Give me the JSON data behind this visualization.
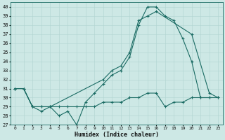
{
  "xlabel": "Humidex (Indice chaleur)",
  "bg_color": "#cde8e5",
  "grid_color": "#b0d4d0",
  "line_color": "#1a6b63",
  "xlim": [
    -0.5,
    23.5
  ],
  "ylim": [
    27,
    40.5
  ],
  "xticks": [
    0,
    1,
    2,
    3,
    4,
    5,
    6,
    7,
    8,
    9,
    10,
    11,
    12,
    13,
    14,
    15,
    16,
    17,
    18,
    19,
    20,
    21,
    22,
    23
  ],
  "yticks": [
    27,
    28,
    29,
    30,
    31,
    32,
    33,
    34,
    35,
    36,
    37,
    38,
    39,
    40
  ],
  "line1_x": [
    0,
    1,
    2,
    3,
    4,
    5,
    6,
    7,
    8,
    9,
    10,
    11,
    12,
    13,
    14,
    15,
    16,
    17,
    18,
    19,
    20,
    21,
    22
  ],
  "line1_y": [
    31.0,
    31.0,
    29.0,
    28.5,
    29.0,
    28.0,
    28.5,
    27.0,
    29.5,
    30.5,
    31.5,
    32.5,
    33.0,
    34.5,
    38.0,
    40.0,
    40.0,
    39.0,
    38.5,
    36.5,
    34.0,
    30.0,
    30.0
  ],
  "line2_x": [
    0,
    1,
    2,
    3,
    4,
    10,
    11,
    12,
    13,
    14,
    15,
    16,
    20,
    22,
    23
  ],
  "line2_y": [
    31.0,
    31.0,
    29.0,
    29.0,
    29.0,
    32.0,
    33.0,
    33.5,
    35.0,
    38.5,
    39.0,
    39.5,
    37.0,
    30.5,
    30.0
  ],
  "line3_x": [
    0,
    1,
    2,
    3,
    4,
    5,
    6,
    7,
    8,
    9,
    10,
    11,
    12,
    13,
    14,
    15,
    16,
    17,
    18,
    19,
    20,
    21,
    22,
    23
  ],
  "line3_y": [
    31.0,
    31.0,
    29.0,
    29.0,
    29.0,
    29.0,
    29.0,
    29.0,
    29.0,
    29.0,
    29.5,
    29.5,
    29.5,
    30.0,
    30.0,
    30.5,
    30.5,
    29.0,
    29.5,
    29.5,
    30.0,
    30.0,
    30.0,
    30.0
  ]
}
